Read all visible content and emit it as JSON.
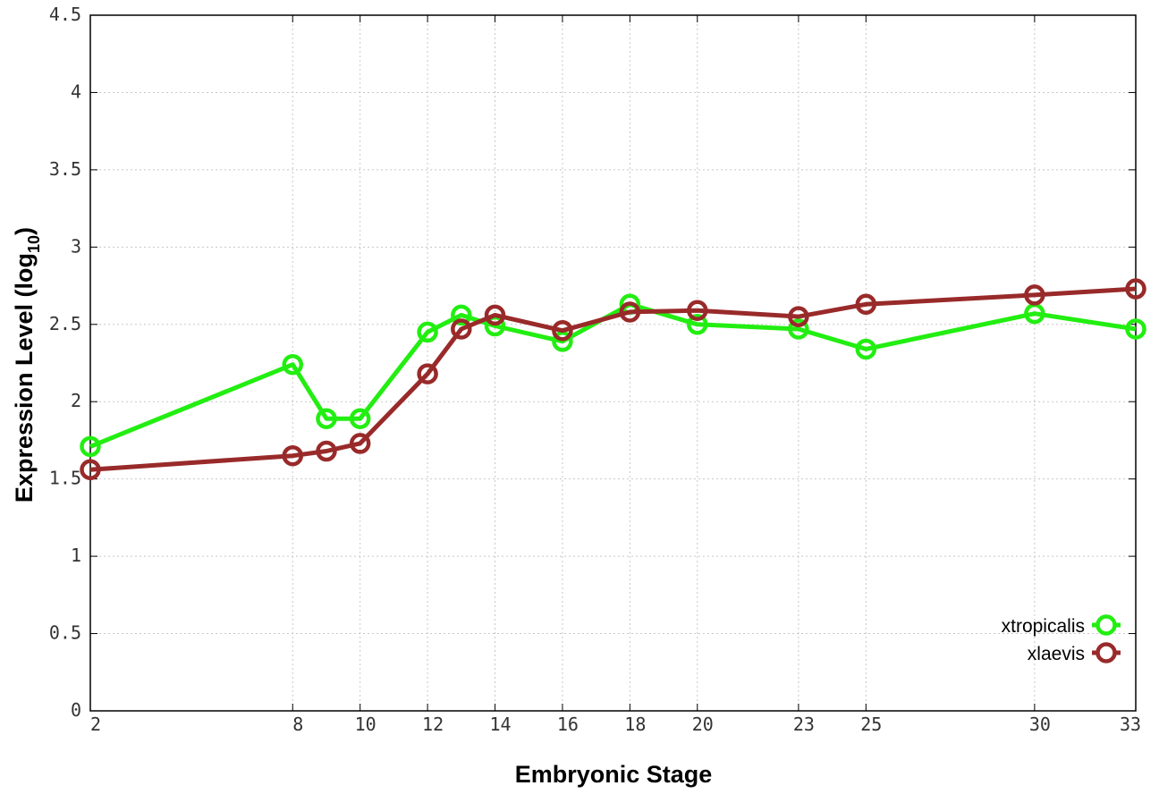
{
  "chart_data": {
    "type": "line",
    "xlabel": "Embryonic Stage",
    "ylabel_main": "Expression Level (log",
    "ylabel_sub": "10",
    "ylabel_close": ")",
    "x_ticks": [
      2,
      8,
      10,
      12,
      14,
      16,
      18,
      20,
      23,
      25,
      30,
      33
    ],
    "y_ticks": [
      "0",
      "0.5",
      "1",
      "1.5",
      "2",
      "2.5",
      "3",
      "3.5",
      "4",
      "4.5"
    ],
    "ylim": [
      0,
      4.5
    ],
    "grid": true,
    "legend_position": "bottom-right",
    "series": [
      {
        "name": "xtropicalis",
        "color": "#22ee11",
        "points": [
          {
            "x": 2,
            "y": 1.71
          },
          {
            "x": 8,
            "y": 2.24
          },
          {
            "x": 9,
            "y": 1.89
          },
          {
            "x": 10,
            "y": 1.89
          },
          {
            "x": 12,
            "y": 2.45
          },
          {
            "x": 13,
            "y": 2.56
          },
          {
            "x": 14,
            "y": 2.49
          },
          {
            "x": 16,
            "y": 2.39
          },
          {
            "x": 18,
            "y": 2.63
          },
          {
            "x": 20,
            "y": 2.5
          },
          {
            "x": 23,
            "y": 2.47
          },
          {
            "x": 25,
            "y": 2.34
          },
          {
            "x": 30,
            "y": 2.57
          },
          {
            "x": 33,
            "y": 2.47
          }
        ]
      },
      {
        "name": "xlaevis",
        "color": "#992a2a",
        "points": [
          {
            "x": 2,
            "y": 1.56
          },
          {
            "x": 8,
            "y": 1.65
          },
          {
            "x": 9,
            "y": 1.68
          },
          {
            "x": 10,
            "y": 1.73
          },
          {
            "x": 12,
            "y": 2.18
          },
          {
            "x": 13,
            "y": 2.47
          },
          {
            "x": 14,
            "y": 2.56
          },
          {
            "x": 16,
            "y": 2.46
          },
          {
            "x": 18,
            "y": 2.58
          },
          {
            "x": 20,
            "y": 2.59
          },
          {
            "x": 23,
            "y": 2.55
          },
          {
            "x": 25,
            "y": 2.63
          },
          {
            "x": 30,
            "y": 2.69
          },
          {
            "x": 33,
            "y": 2.73
          }
        ]
      }
    ]
  }
}
